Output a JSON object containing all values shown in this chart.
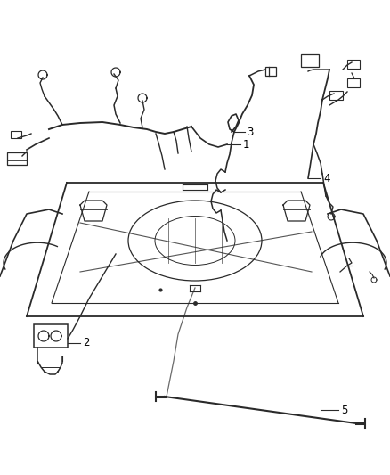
{
  "background_color": "#ffffff",
  "line_color": "#2a2a2a",
  "label_color": "#000000",
  "label_fontsize": 8.5,
  "fig_width": 4.38,
  "fig_height": 5.33,
  "dpi": 100
}
